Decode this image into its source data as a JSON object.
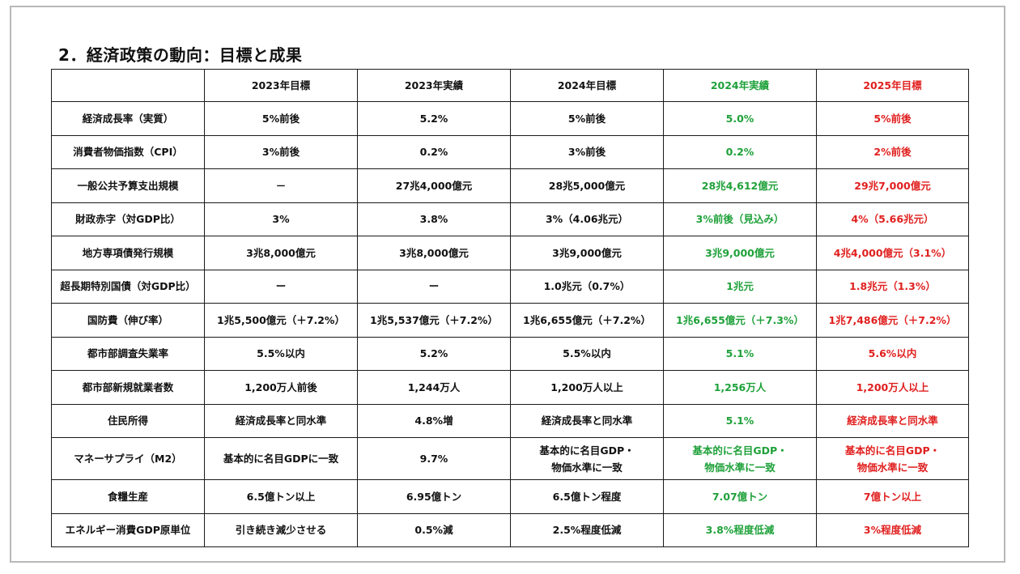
{
  "title": "2．経済政策の動向：目標と成果",
  "colors": {
    "green": "#1fa13a",
    "red": "#e0201f",
    "border": "#1a1a1a",
    "frame": "#b8b8b8"
  },
  "table": {
    "corner": "",
    "headers": [
      "2023年目標",
      "2023年実績",
      "2024年目標",
      "2024年実績",
      "2025年目標"
    ],
    "rows": [
      {
        "label": "経済成長率（実質）",
        "cells": [
          [
            "5%前後"
          ],
          [
            "5.2%"
          ],
          [
            "5%前後"
          ],
          [
            "5.0%"
          ],
          [
            "5%前後"
          ]
        ]
      },
      {
        "label": "消費者物価指数（CPI）",
        "cells": [
          [
            "3%前後"
          ],
          [
            "0.2%"
          ],
          [
            "3%前後"
          ],
          [
            "0.2%"
          ],
          [
            "2%前後"
          ]
        ]
      },
      {
        "label": "一般公共予算支出規模",
        "cells": [
          [
            "－"
          ],
          [
            "27兆4,000億元"
          ],
          [
            "28兆5,000億元"
          ],
          [
            "28兆4,612億元"
          ],
          [
            "29兆7,000億元"
          ]
        ]
      },
      {
        "label": "財政赤字（対GDP比）",
        "cells": [
          [
            "3%"
          ],
          [
            "3.8%"
          ],
          [
            "3%（4.06兆元）"
          ],
          [
            "3%前後（見込み）"
          ],
          [
            "4%（5.66兆元）"
          ]
        ]
      },
      {
        "label": "地方専項債発行規模",
        "cells": [
          [
            "3兆8,000億元"
          ],
          [
            "3兆8,000億元"
          ],
          [
            "3兆9,000億元"
          ],
          [
            "3兆9,000億元"
          ],
          [
            "4兆4,000億元（3.1%）"
          ]
        ]
      },
      {
        "label": "超長期特別国債（対GDP比）",
        "cells": [
          [
            "ー"
          ],
          [
            "ー"
          ],
          [
            "1.0兆元（0.7%）"
          ],
          [
            "1兆元"
          ],
          [
            "1.8兆元（1.3%）"
          ]
        ]
      },
      {
        "label": "国防費（伸び率）",
        "cells": [
          [
            "1兆5,500億元（＋7.2%）"
          ],
          [
            "1兆5,537億元（＋7.2%）"
          ],
          [
            "1兆6,655億元（＋7.2%）"
          ],
          [
            "1兆6,655億元（＋7.3%）"
          ],
          [
            "1兆7,486億元（＋7.2%）"
          ]
        ]
      },
      {
        "label": "都市部調査失業率",
        "cells": [
          [
            "5.5%以内"
          ],
          [
            "5.2%"
          ],
          [
            "5.5%以内"
          ],
          [
            "5.1%"
          ],
          [
            "5.6%以内"
          ]
        ]
      },
      {
        "label": "都市部新規就業者数",
        "cells": [
          [
            "1,200万人前後"
          ],
          [
            "1,244万人"
          ],
          [
            "1,200万人以上"
          ],
          [
            "1,256万人"
          ],
          [
            "1,200万人以上"
          ]
        ]
      },
      {
        "label": "住民所得",
        "cells": [
          [
            "経済成長率と同水準"
          ],
          [
            "4.8%増"
          ],
          [
            "経済成長率と同水準"
          ],
          [
            "5.1%"
          ],
          [
            "経済成長率と同水準"
          ]
        ]
      },
      {
        "label": "マネーサプライ（M2）",
        "cells": [
          [
            "基本的に名目GDPに一致"
          ],
          [
            "9.7%"
          ],
          [
            "基本的に名目GDP・",
            "物価水準に一致"
          ],
          [
            "基本的に名目GDP・",
            "物価水準に一致"
          ],
          [
            "基本的に名目GDP・",
            "物価水準に一致"
          ]
        ]
      },
      {
        "label": "食糧生産",
        "cells": [
          [
            "6.5億トン以上"
          ],
          [
            "6.95億トン"
          ],
          [
            "6.5億トン程度"
          ],
          [
            "7.07億トン"
          ],
          [
            "7億トン以上"
          ]
        ]
      },
      {
        "label": "エネルギー消費GDP原単位",
        "cells": [
          [
            "引き続き減少させる"
          ],
          [
            "0.5%減"
          ],
          [
            "2.5%程度低減"
          ],
          [
            "3.8%程度低減"
          ],
          [
            "3%程度低減"
          ]
        ]
      }
    ]
  }
}
